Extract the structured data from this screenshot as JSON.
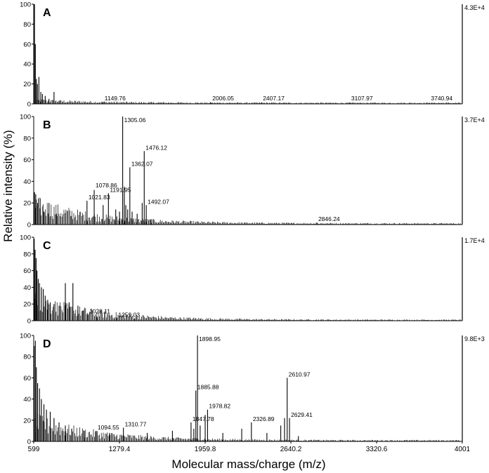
{
  "chart_data": {
    "type": "line",
    "ylabel": "Relative intensity (%)",
    "xlabel": "Molecular mass/charge (m/z)",
    "xlim": [
      599,
      4001
    ],
    "ylim": [
      0,
      100
    ],
    "x_ticks": [
      "599",
      "1279.4",
      "1959.8",
      "2640.2",
      "3320.6",
      "4001"
    ],
    "y_ticks": [
      "0",
      "20",
      "40",
      "60",
      "80",
      "100"
    ],
    "panels": [
      {
        "title": "A",
        "scale": "4.3E+4",
        "peaks": [
          {
            "x": 605,
            "y": 100
          },
          {
            "x": 612,
            "y": 60
          },
          {
            "x": 620,
            "y": 25
          },
          {
            "x": 628,
            "y": 20
          },
          {
            "x": 640,
            "y": 27
          },
          {
            "x": 655,
            "y": 12
          },
          {
            "x": 668,
            "y": 10
          },
          {
            "x": 690,
            "y": 8
          },
          {
            "x": 720,
            "y": 5
          },
          {
            "x": 760,
            "y": 12
          },
          {
            "x": 800,
            "y": 3
          },
          {
            "x": 1149.76,
            "y": 2
          },
          {
            "x": 2006.05,
            "y": 1.5
          },
          {
            "x": 2407.17,
            "y": 1.5
          },
          {
            "x": 3107.97,
            "y": 1
          },
          {
            "x": 3740.94,
            "y": 1
          }
        ],
        "labels": [
          {
            "x": 1149.76,
            "y": 2,
            "text": "1149.76"
          },
          {
            "x": 2006.05,
            "y": 2,
            "text": "2006.05"
          },
          {
            "x": 2407.17,
            "y": 2,
            "text": "2407.17"
          },
          {
            "x": 3107.97,
            "y": 2,
            "text": "3107.97"
          },
          {
            "x": 3740.94,
            "y": 2,
            "text": "3740.94"
          }
        ]
      },
      {
        "title": "B",
        "scale": "3.7E+4",
        "peaks": [
          {
            "x": 605,
            "y": 30
          },
          {
            "x": 615,
            "y": 28
          },
          {
            "x": 630,
            "y": 20
          },
          {
            "x": 650,
            "y": 15
          },
          {
            "x": 680,
            "y": 12
          },
          {
            "x": 720,
            "y": 20
          },
          {
            "x": 780,
            "y": 10
          },
          {
            "x": 900,
            "y": 8
          },
          {
            "x": 1021.83,
            "y": 22
          },
          {
            "x": 1078.86,
            "y": 32
          },
          {
            "x": 1150,
            "y": 18
          },
          {
            "x": 1191.95,
            "y": 29
          },
          {
            "x": 1250,
            "y": 14
          },
          {
            "x": 1280,
            "y": 12
          },
          {
            "x": 1305.06,
            "y": 100
          },
          {
            "x": 1318,
            "y": 35
          },
          {
            "x": 1330,
            "y": 18
          },
          {
            "x": 1345,
            "y": 14
          },
          {
            "x": 1362.07,
            "y": 53
          },
          {
            "x": 1380,
            "y": 12
          },
          {
            "x": 1420,
            "y": 10
          },
          {
            "x": 1460,
            "y": 20
          },
          {
            "x": 1476.12,
            "y": 68
          },
          {
            "x": 1492.07,
            "y": 18
          },
          {
            "x": 1530,
            "y": 5
          },
          {
            "x": 2846.24,
            "y": 2
          }
        ],
        "labels": [
          {
            "x": 1305.06,
            "y": 100,
            "text": "1305.06"
          },
          {
            "x": 1476.12,
            "y": 68,
            "text": "1476.12"
          },
          {
            "x": 1362.07,
            "y": 53,
            "text": "1362.07"
          },
          {
            "x": 1078.86,
            "y": 33,
            "text": "1078.86"
          },
          {
            "x": 1191.95,
            "y": 29,
            "text": "1191.95"
          },
          {
            "x": 1021.83,
            "y": 22,
            "text": "1021.83"
          },
          {
            "x": 1492.07,
            "y": 18,
            "text": "1492.07"
          },
          {
            "x": 2846.24,
            "y": 2,
            "text": "2846.24"
          }
        ]
      },
      {
        "title": "C",
        "scale": "1.7E+4",
        "peaks": [
          {
            "x": 603,
            "y": 98
          },
          {
            "x": 610,
            "y": 85
          },
          {
            "x": 618,
            "y": 75
          },
          {
            "x": 625,
            "y": 60
          },
          {
            "x": 635,
            "y": 50
          },
          {
            "x": 645,
            "y": 45
          },
          {
            "x": 660,
            "y": 40
          },
          {
            "x": 675,
            "y": 38
          },
          {
            "x": 690,
            "y": 30
          },
          {
            "x": 710,
            "y": 25
          },
          {
            "x": 730,
            "y": 22
          },
          {
            "x": 760,
            "y": 20
          },
          {
            "x": 800,
            "y": 18
          },
          {
            "x": 850,
            "y": 45
          },
          {
            "x": 880,
            "y": 22
          },
          {
            "x": 910,
            "y": 45
          },
          {
            "x": 950,
            "y": 18
          },
          {
            "x": 990,
            "y": 12
          },
          {
            "x": 1028.11,
            "y": 7
          },
          {
            "x": 1100,
            "y": 5
          },
          {
            "x": 1259.03,
            "y": 3
          },
          {
            "x": 1400,
            "y": 2
          }
        ],
        "labels": [
          {
            "x": 1028.11,
            "y": 7,
            "text": "1028.11"
          },
          {
            "x": 1259.03,
            "y": 3,
            "text": "1259.03"
          }
        ]
      },
      {
        "title": "D",
        "scale": "9.8E+3",
        "peaks": [
          {
            "x": 603,
            "y": 90
          },
          {
            "x": 612,
            "y": 95
          },
          {
            "x": 620,
            "y": 70
          },
          {
            "x": 630,
            "y": 55
          },
          {
            "x": 645,
            "y": 50
          },
          {
            "x": 660,
            "y": 40
          },
          {
            "x": 680,
            "y": 35
          },
          {
            "x": 700,
            "y": 30
          },
          {
            "x": 730,
            "y": 28
          },
          {
            "x": 760,
            "y": 22
          },
          {
            "x": 800,
            "y": 18
          },
          {
            "x": 850,
            "y": 15
          },
          {
            "x": 900,
            "y": 12
          },
          {
            "x": 1000,
            "y": 10
          },
          {
            "x": 1094.55,
            "y": 10
          },
          {
            "x": 1200,
            "y": 8
          },
          {
            "x": 1310.77,
            "y": 13
          },
          {
            "x": 1500,
            "y": 8
          },
          {
            "x": 1700,
            "y": 10
          },
          {
            "x": 1847.78,
            "y": 18
          },
          {
            "x": 1870,
            "y": 12
          },
          {
            "x": 1885.88,
            "y": 48
          },
          {
            "x": 1898.95,
            "y": 100
          },
          {
            "x": 1920,
            "y": 15
          },
          {
            "x": 1960,
            "y": 25
          },
          {
            "x": 1978.82,
            "y": 30
          },
          {
            "x": 2100,
            "y": 8
          },
          {
            "x": 2250,
            "y": 12
          },
          {
            "x": 2326.89,
            "y": 18
          },
          {
            "x": 2450,
            "y": 8
          },
          {
            "x": 2560,
            "y": 15
          },
          {
            "x": 2590,
            "y": 22
          },
          {
            "x": 2610.97,
            "y": 60
          },
          {
            "x": 2629.41,
            "y": 22
          },
          {
            "x": 2700,
            "y": 5
          }
        ],
        "labels": [
          {
            "x": 1898.95,
            "y": 100,
            "text": "1898.95"
          },
          {
            "x": 2610.97,
            "y": 60,
            "text": "2610.97"
          },
          {
            "x": 1885.88,
            "y": 48,
            "text": "1885.88"
          },
          {
            "x": 1978.82,
            "y": 30,
            "text": "1978.82"
          },
          {
            "x": 2629.41,
            "y": 22,
            "text": "2629.41"
          },
          {
            "x": 1847.78,
            "y": 18,
            "text": "1847.78"
          },
          {
            "x": 2326.89,
            "y": 18,
            "text": "2326.89"
          },
          {
            "x": 1310.77,
            "y": 13,
            "text": "1310.77"
          },
          {
            "x": 1094.55,
            "y": 10,
            "text": "1094.55"
          }
        ]
      }
    ]
  }
}
